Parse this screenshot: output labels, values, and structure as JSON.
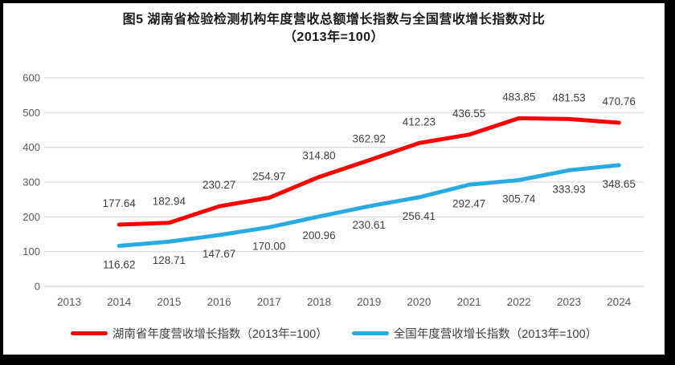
{
  "chart_data": {
    "type": "line",
    "title_line1": "图5 湖南省检验检测机构年度营收总额增长指数与全国营收增长指数对比",
    "title_line2": "（2013年=100）",
    "categories": [
      "2013",
      "2014",
      "2015",
      "2016",
      "2017",
      "2018",
      "2019",
      "2020",
      "2021",
      "2022",
      "2023",
      "2024"
    ],
    "series": [
      {
        "name": "湖南省年度营收增长指数（2013年=100）",
        "color": "#FF0000",
        "start_index": 1,
        "values": [
          177.64,
          182.94,
          230.27,
          254.97,
          314.8,
          362.92,
          412.23,
          436.55,
          483.85,
          481.53,
          470.76
        ],
        "label_position": "above"
      },
      {
        "name": "全国年度营收增长指数（2013年=100）",
        "color": "#29ABE2",
        "start_index": 1,
        "values": [
          116.62,
          128.71,
          147.67,
          170.0,
          200.96,
          230.61,
          256.41,
          292.47,
          305.74,
          333.93,
          348.65
        ],
        "label_position": "below"
      }
    ],
    "y_ticks": [
      0,
      100,
      200,
      300,
      400,
      500,
      600
    ],
    "ylim": [
      0,
      600
    ],
    "grid": true,
    "legend_position": "bottom",
    "colors": {
      "gridline": "#D9D9D9",
      "axis_text": "#595959",
      "data_label": "#404040",
      "frame_border": "#000000",
      "background": "#FFFFFF"
    }
  }
}
